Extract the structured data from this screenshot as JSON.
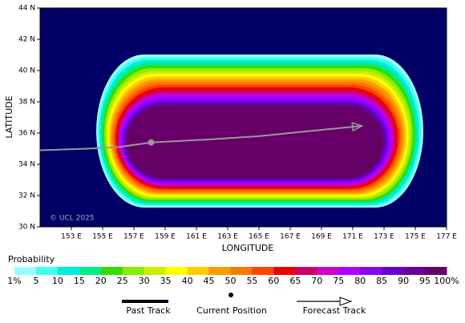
{
  "chart_data": {
    "type": "probability_map",
    "xlabel": "LONGITUDE",
    "ylabel": "LATITUDE",
    "copyright": "© UCL 2025",
    "xlim": [
      151,
      177
    ],
    "ylim": [
      30,
      44
    ],
    "xticks": [
      {
        "value": 153,
        "label": "153 E"
      },
      {
        "value": 155,
        "label": "155 E"
      },
      {
        "value": 157,
        "label": "157 E"
      },
      {
        "value": 159,
        "label": "159 E"
      },
      {
        "value": 161,
        "label": "161 E"
      },
      {
        "value": 163,
        "label": "163 E"
      },
      {
        "value": 165,
        "label": "165 E"
      },
      {
        "value": 167,
        "label": "167 E"
      },
      {
        "value": 169,
        "label": "169 E"
      },
      {
        "value": 171,
        "label": "171 E"
      },
      {
        "value": 173,
        "label": "173 E"
      },
      {
        "value": 175,
        "label": "175 E"
      },
      {
        "value": 177,
        "label": "177 E"
      }
    ],
    "yticks": [
      {
        "value": 30,
        "label": "30 N"
      },
      {
        "value": 32,
        "label": "32 N"
      },
      {
        "value": 34,
        "label": "34 N"
      },
      {
        "value": 36,
        "label": "36 N"
      },
      {
        "value": 38,
        "label": "38 N"
      },
      {
        "value": 40,
        "label": "40 N"
      },
      {
        "value": 42,
        "label": "42 N"
      },
      {
        "value": 44,
        "label": "44 N"
      }
    ],
    "background": "#000066",
    "past_track": {
      "name": "Past Track",
      "color": "#999999",
      "lon": [
        151,
        154,
        156,
        158.1
      ],
      "lat": [
        34.9,
        35.0,
        35.1,
        35.4
      ]
    },
    "current_position": {
      "name": "Current Position",
      "lon": 158.1,
      "lat": 35.4,
      "color": "#999999"
    },
    "forecast_track": {
      "name": "Forecast Track",
      "color": "#999999",
      "lon": [
        158.1,
        162,
        165,
        168,
        171.6
      ],
      "lat": [
        35.4,
        35.6,
        35.8,
        36.1,
        36.46
      ]
    },
    "colorbar": {
      "title": "Probability",
      "levels": [
        {
          "value": 1,
          "label": "1%"
        },
        5,
        10,
        15,
        20,
        25,
        30,
        35,
        40,
        45,
        50,
        55,
        60,
        65,
        70,
        75,
        80,
        85,
        90,
        95,
        {
          "value": 100,
          "label": "100%"
        }
      ],
      "colors": [
        "#99ffff",
        "#40ffee",
        "#00eedd",
        "#00ee88",
        "#33dd00",
        "#88ee00",
        "#ccee00",
        "#ffff00",
        "#ffcc00",
        "#ff9900",
        "#ff7700",
        "#ff4400",
        "#ee0000",
        "#cc0066",
        "#cc00cc",
        "#aa00ff",
        "#8800ff",
        "#6600cc",
        "#660099",
        "#660066"
      ]
    }
  }
}
